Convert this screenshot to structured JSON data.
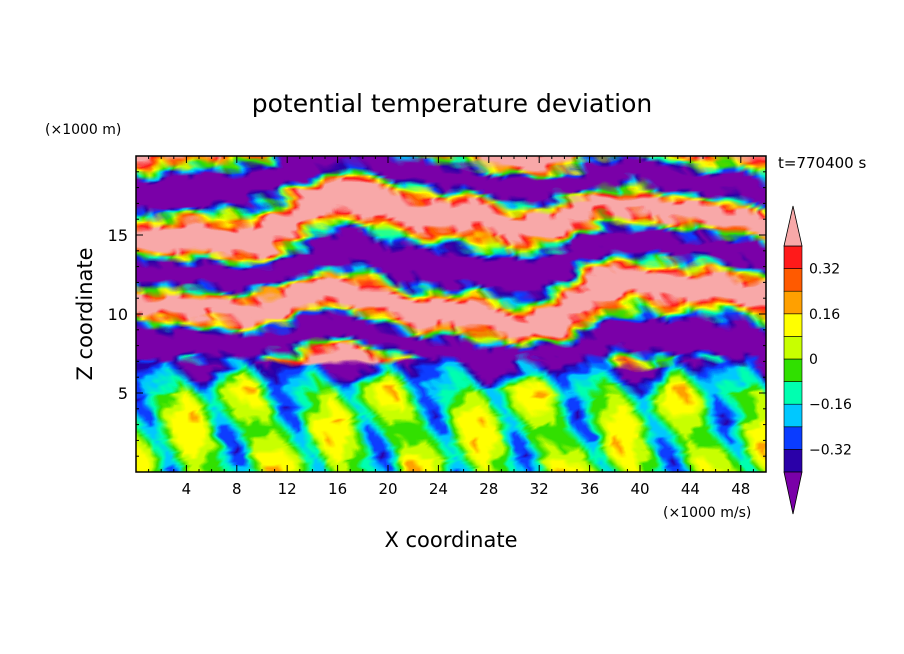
{
  "chart_data": {
    "type": "heatmap",
    "title": "potential temperature deviation",
    "xlabel": "X coordinate",
    "ylabel": "Z coordinate",
    "x_unit": "(×1000 m/s)",
    "y_unit": "(×1000 m)",
    "time_label": "t=770400 s",
    "xlim": [
      0,
      50
    ],
    "ylim": [
      0,
      20
    ],
    "x_ticks": [
      4,
      8,
      12,
      16,
      20,
      24,
      28,
      32,
      36,
      40,
      44,
      48
    ],
    "y_ticks": [
      5,
      10,
      15
    ],
    "colorbar": {
      "levels": [
        -0.4,
        -0.32,
        -0.24,
        -0.16,
        -0.08,
        0,
        0.08,
        0.16,
        0.24,
        0.32,
        0.4
      ],
      "labeled_ticks": [
        0.32,
        0.16,
        0,
        -0.16,
        -0.32
      ],
      "tick_labels": [
        "0.32",
        "0.16",
        "0",
        "−0.16",
        "−0.32"
      ],
      "colors": [
        "#7a00a8",
        "#2a00a8",
        "#0a3cff",
        "#00c8ff",
        "#00ffb0",
        "#30e000",
        "#c8ff00",
        "#ffff00",
        "#ffa000",
        "#ff5a00",
        "#ff1a1a",
        "#f8a8a8"
      ],
      "extends": "both"
    }
  }
}
